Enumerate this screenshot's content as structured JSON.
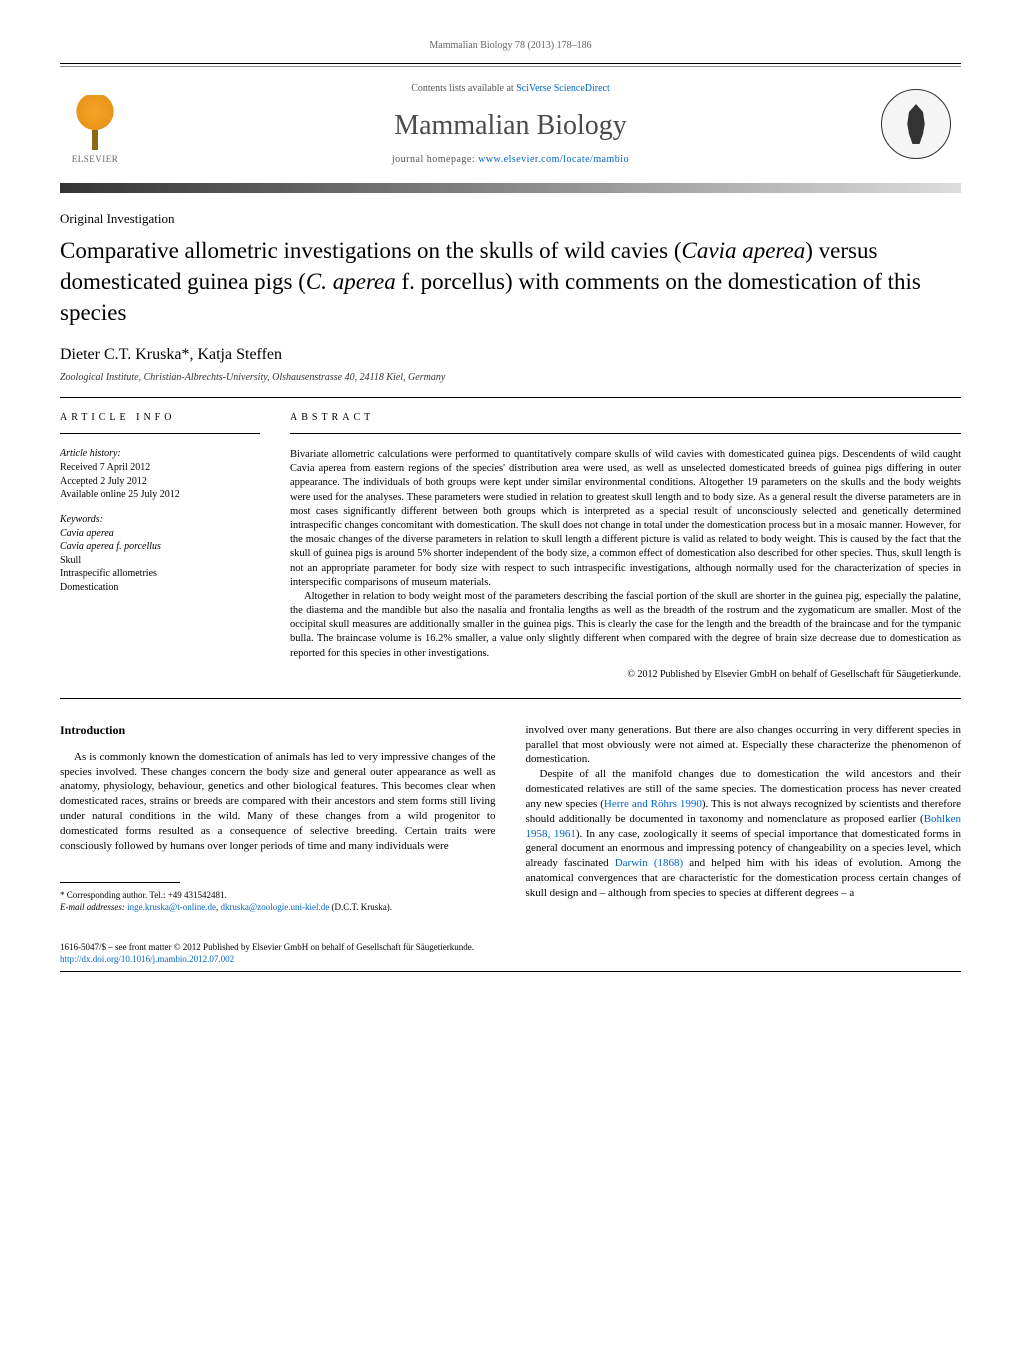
{
  "citation": "Mammalian Biology 78 (2013) 178–186",
  "masthead": {
    "contents_prefix": "Contents lists available at ",
    "contents_link": "SciVerse ScienceDirect",
    "journal": "Mammalian Biology",
    "homepage_prefix": "journal homepage: ",
    "homepage_url": "www.elsevier.com/locate/mambio",
    "publisher": "ELSEVIER"
  },
  "article": {
    "type": "Original Investigation",
    "title_part1": "Comparative allometric investigations on the skulls of wild cavies (",
    "title_species1": "Cavia aperea",
    "title_part2": ") versus domesticated guinea pigs (",
    "title_species2": "C. aperea",
    "title_part3": " f. porcellus) with comments on the domestication of this species",
    "authors": "Dieter C.T. Kruska*, Katja Steffen",
    "affiliation": "Zoological Institute, Christian-Albrechts-University, Olshausenstrasse 40, 24118 Kiel, Germany"
  },
  "info": {
    "label": "article info",
    "history_head": "Article history:",
    "received": "Received 7 April 2012",
    "accepted": "Accepted 2 July 2012",
    "online": "Available online 25 July 2012",
    "keywords_head": "Keywords:",
    "kw1": "Cavia aperea",
    "kw2": "Cavia aperea f. porcellus",
    "kw3": "Skull",
    "kw4": "Intraspecific allometries",
    "kw5": "Domestication"
  },
  "abstract": {
    "label": "abstract",
    "p1": "Bivariate allometric calculations were performed to quantitatively compare skulls of wild cavies with domesticated guinea pigs. Descendents of wild caught Cavia aperea from eastern regions of the species' distribution area were used, as well as unselected domesticated breeds of guinea pigs differing in outer appearance. The individuals of both groups were kept under similar environmental conditions. Altogether 19 parameters on the skulls and the body weights were used for the analyses. These parameters were studied in relation to greatest skull length and to body size. As a general result the diverse parameters are in most cases significantly different between both groups which is interpreted as a special result of unconsciously selected and genetically determined intraspecific changes concomitant with domestication. The skull does not change in total under the domestication process but in a mosaic manner. However, for the mosaic changes of the diverse parameters in relation to skull length a different picture is valid as related to body weight. This is caused by the fact that the skull of guinea pigs is around 5% shorter independent of the body size, a common effect of domestication also described for other species. Thus, skull length is not an appropriate parameter for body size with respect to such intraspecific investigations, although normally used for the characterization of species in interspecific comparisons of museum materials.",
    "p2": "Altogether in relation to body weight most of the parameters describing the fascial portion of the skull are shorter in the guinea pig, especially the palatine, the diastema and the mandible but also the nasalia and frontalia lengths as well as the breadth of the rostrum and the zygomaticum are smaller. Most of the occipital skull measures are additionally smaller in the guinea pigs. This is clearly the case for the length and the breadth of the braincase and for the tympanic bulla. The braincase volume is 16.2% smaller, a value only slightly different when compared with the degree of brain size decrease due to domestication as reported for this species in other investigations.",
    "copyright": "© 2012 Published by Elsevier GmbH on behalf of Gesellschaft für Säugetierkunde."
  },
  "body": {
    "intro_head": "Introduction",
    "col1_p1": "As is commonly known the domestication of animals has led to very impressive changes of the species involved. These changes concern the body size and general outer appearance as well as anatomy, physiology, behaviour, genetics and other biological features. This becomes clear when domesticated races, strains or breeds are compared with their ancestors and stem forms still living under natural conditions in the wild. Many of these changes from a wild progenitor to domesticated forms resulted as a consequence of selective breeding. Certain traits were consciously followed by humans over longer periods of time and many individuals were",
    "col2_p1": "involved over many generations. But there are also changes occurring in very different species in parallel that most obviously were not aimed at. Especially these characterize the phenomenon of domestication.",
    "col2_p2a": "Despite of all the manifold changes due to domestication the wild ancestors and their domesticated relatives are still of the same species. The domestication process has never created any new species (",
    "col2_ref1": "Herre and Röhrs 1990",
    "col2_p2b": "). This is not always recognized by scientists and therefore should additionally be documented in taxonomy and nomenclature as proposed earlier (",
    "col2_ref2": "Bohlken 1958, 1961",
    "col2_p2c": "). In any case, zoologically it seems of special importance that domesticated forms in general document an enormous and impressing potency of changeability on a species level, which already fascinated ",
    "col2_ref3": "Darwin (1868)",
    "col2_p2d": " and helped him with his ideas of evolution. Among the anatomical convergences that are characteristic for the domestication process certain changes of skull design and – although from species to species at different degrees – a"
  },
  "footnote": {
    "corr": "* Corresponding author. Tel.: +49 431542481.",
    "email_label": "E-mail addresses: ",
    "email1": "inge.kruska@t-online.de",
    "email_sep": ", ",
    "email2": "dkruska@zoologie.uni-kiel.de",
    "author_paren": " (D.C.T. Kruska)."
  },
  "bottom": {
    "issn_line": "1616-5047/$ – see front matter © 2012 Published by Elsevier GmbH on behalf of Gesellschaft für Säugetierkunde.",
    "doi": "http://dx.doi.org/10.1016/j.mambio.2012.07.002"
  }
}
